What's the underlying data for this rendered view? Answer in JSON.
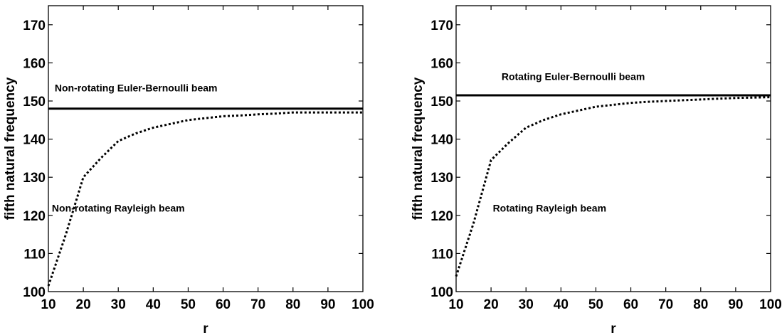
{
  "chart_data": [
    {
      "type": "line",
      "title": "",
      "xlabel": "r",
      "ylabel": "fifth natural frequency",
      "xlim": [
        10,
        100
      ],
      "ylim": [
        100,
        175
      ],
      "xticks": [
        10,
        20,
        30,
        40,
        50,
        60,
        70,
        80,
        90,
        100
      ],
      "yticks": [
        100,
        110,
        120,
        130,
        140,
        150,
        160,
        170
      ],
      "xtick_labels": [
        "10",
        "20",
        "30",
        "40",
        "50",
        "60",
        "70",
        "80",
        "90",
        "100"
      ],
      "ytick_labels": [
        "100",
        "110",
        "120",
        "130",
        "140",
        "150",
        "160",
        "170"
      ],
      "grid": false,
      "series": [
        {
          "name": "Non-rotating Euler-Bernoulli beam",
          "style": "solid",
          "x": [
            10,
            100
          ],
          "y": [
            148,
            148
          ]
        },
        {
          "name": "Non-rotating Rayleigh beam",
          "style": "dotted",
          "x": [
            10,
            15,
            20,
            25,
            30,
            35,
            40,
            45,
            50,
            55,
            60,
            65,
            70,
            75,
            80,
            85,
            90,
            95,
            100
          ],
          "y": [
            101.5,
            115,
            130,
            135,
            139.5,
            141.5,
            143,
            144,
            145,
            145.5,
            146,
            146.2,
            146.5,
            146.7,
            147,
            147,
            147,
            147,
            147
          ]
        }
      ],
      "annotations": [
        {
          "text": "Non-rotating Euler-Bernoulli beam",
          "x": 11.8,
          "y": 152.5
        },
        {
          "text": "Non-rotating Rayleigh beam",
          "x": 11,
          "y": 121
        }
      ]
    },
    {
      "type": "line",
      "title": "",
      "xlabel": "r",
      "ylabel": "fifth natural frequency",
      "xlim": [
        10,
        100
      ],
      "ylim": [
        100,
        175
      ],
      "xticks": [
        10,
        20,
        30,
        40,
        50,
        60,
        70,
        80,
        90,
        100
      ],
      "yticks": [
        100,
        110,
        120,
        130,
        140,
        150,
        160,
        170
      ],
      "xtick_labels": [
        "10",
        "20",
        "30",
        "40",
        "50",
        "60",
        "70",
        "80",
        "90",
        "100"
      ],
      "ytick_labels": [
        "100",
        "110",
        "120",
        "130",
        "140",
        "150",
        "160",
        "170"
      ],
      "grid": false,
      "series": [
        {
          "name": "Rotating Euler-Bernoulli beam",
          "style": "solid",
          "x": [
            10,
            100
          ],
          "y": [
            151.5,
            151.5
          ]
        },
        {
          "name": "Rotating Rayleigh beam",
          "style": "dotted",
          "x": [
            10,
            15,
            20,
            25,
            30,
            35,
            40,
            45,
            50,
            55,
            60,
            65,
            70,
            75,
            80,
            85,
            90,
            95,
            100
          ],
          "y": [
            104,
            118,
            134.5,
            139,
            143,
            145,
            146.5,
            147.5,
            148.5,
            149,
            149.5,
            149.8,
            150,
            150.2,
            150.4,
            150.6,
            150.8,
            150.9,
            151
          ]
        }
      ],
      "annotations": [
        {
          "text": "Rotating Euler-Bernoulli beam",
          "x": 23,
          "y": 155.5
        },
        {
          "text": "Rotating Rayleigh beam",
          "x": 20.5,
          "y": 121
        }
      ]
    }
  ]
}
